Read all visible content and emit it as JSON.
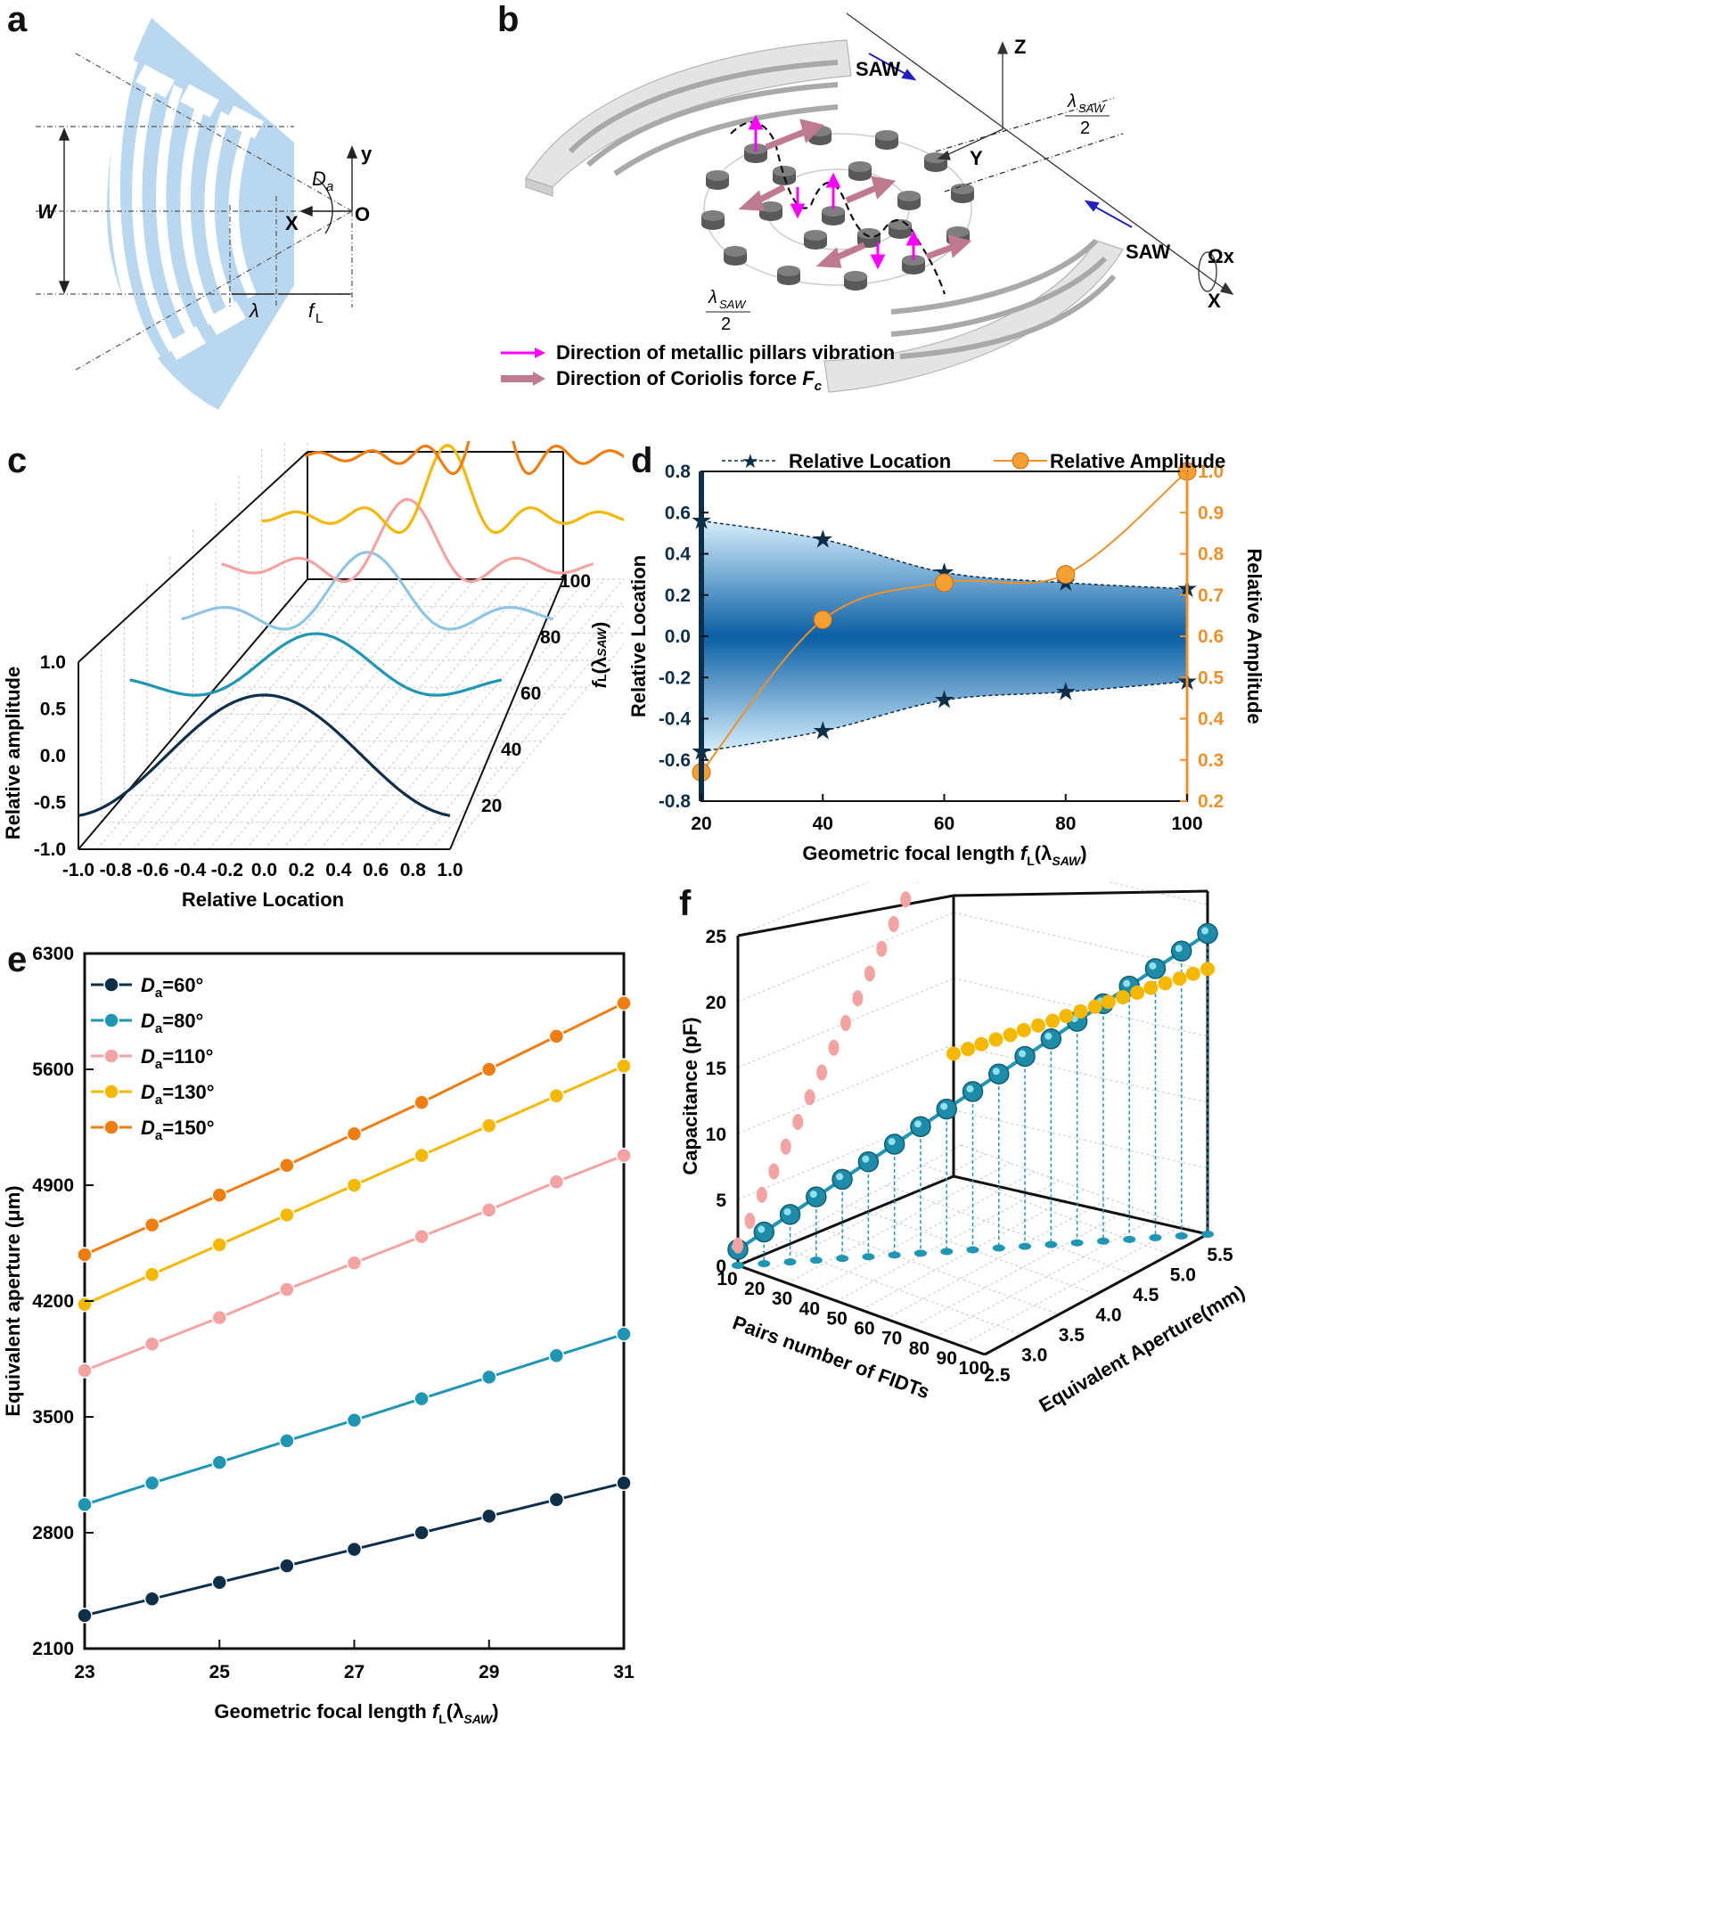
{
  "panel_labels": {
    "a": "a",
    "b": "b",
    "c": "c",
    "d": "d",
    "e": "e",
    "f": "f"
  },
  "panel_a": {
    "labels": {
      "W": "W",
      "y": "y",
      "X": "X",
      "O": "O",
      "Da": "D",
      "Da_sub": "a",
      "lambda": "λ",
      "fL": "f",
      "fL_sub": "L"
    },
    "colors": {
      "electrode": "#b9d8f0"
    }
  },
  "panel_b": {
    "labels": {
      "saw_top": "SAW",
      "saw_right": "SAW",
      "z": "Z",
      "y": "Y",
      "x": "X",
      "omega": "Ωx",
      "lambda_top": "λ",
      "lambda_sub": "SAW",
      "two": "2"
    },
    "legend": [
      {
        "text": "Direction of metallic pillars vibration",
        "color": "#ff00ff"
      },
      {
        "text": "Direction of Coriolis force ",
        "emph": "F",
        "emph_sub": "c",
        "color": "#c07a90"
      }
    ]
  },
  "panel_c": {
    "chart_data": {
      "type": "line",
      "xlabel": "Relative Location",
      "ylabel": "Relative amplitude",
      "zlabel": "f",
      "zlabel_sub": "L",
      "zlabel_unit": "(λ",
      "zlabel_unit_sub": "SAW",
      "zlabel_close": ")",
      "xticks": [
        "-1.0",
        "-0.8",
        "-0.6",
        "-0.4",
        "-0.2",
        "0.0",
        "0.2",
        "0.4",
        "0.6",
        "0.8",
        "1.0"
      ],
      "yticks": [
        "-1.0",
        "-0.5",
        "0.0",
        "0.5",
        "1.0"
      ],
      "zticks": [
        "20",
        "40",
        "60",
        "80",
        "100"
      ],
      "xlim": [
        -1.0,
        1.0
      ],
      "ylim": [
        -1.0,
        1.0
      ],
      "series": [
        {
          "fL": 20,
          "color": "#0d2f4a"
        },
        {
          "fL": 40,
          "color": "#1e96b4"
        },
        {
          "fL": 60,
          "color": "#8ec5e3"
        },
        {
          "fL": 80,
          "color": "#f4a3a3"
        },
        {
          "fL": 100,
          "color": "#f5b800"
        },
        {
          "fL": 100,
          "color": "#f07d10"
        }
      ]
    }
  },
  "panel_d": {
    "chart_data": {
      "type": "line",
      "xlabel": "Geometric focal length ",
      "xlabel_f": "f",
      "xlabel_sub": "L",
      "xlabel_unit": "(λ",
      "xlabel_unit_sub": "SAW",
      "xlabel_close": ")",
      "ylabel": "Relative Location",
      "y2label": "Relative Amplitude",
      "x": [
        20,
        40,
        60,
        80,
        100
      ],
      "xlim": [
        20,
        100
      ],
      "ylim": [
        -0.8,
        0.8
      ],
      "y2lim": [
        0.2,
        1.0
      ],
      "xticks": [
        "20",
        "40",
        "60",
        "80",
        "100"
      ],
      "yticks": [
        "-0.8",
        "-0.6",
        "-0.4",
        "-0.2",
        "0.0",
        "0.2",
        "0.4",
        "0.6",
        "0.8"
      ],
      "y2ticks": [
        "0.2",
        "0.3",
        "0.4",
        "0.5",
        "0.6",
        "0.7",
        "0.8",
        "0.9",
        "1.0"
      ],
      "series": [
        {
          "name": "Relative Location",
          "upper": [
            0.56,
            0.47,
            0.31,
            0.26,
            0.23
          ],
          "lower": [
            -0.56,
            -0.46,
            -0.31,
            -0.27,
            -0.22
          ],
          "color": "#0d2f4a"
        },
        {
          "name": "Relative Amplitude",
          "values": [
            0.27,
            0.64,
            0.73,
            0.75,
            1.0
          ],
          "color": "#f0902a"
        }
      ]
    }
  },
  "panel_e": {
    "chart_data": {
      "type": "line",
      "xlabel": "Geometric focal length ",
      "xlabel_f": "f",
      "xlabel_sub": "L",
      "xlabel_unit": "(λ",
      "xlabel_unit_sub": "SAW",
      "xlabel_close": ")",
      "ylabel": "Equivalent aperture (μm)",
      "x": [
        23,
        24,
        25,
        26,
        27,
        28,
        29,
        30,
        31
      ],
      "xlim": [
        23,
        31
      ],
      "ylim": [
        2100,
        6300
      ],
      "xticks": [
        "23",
        "25",
        "27",
        "29",
        "31"
      ],
      "yticks": [
        "2100",
        "2800",
        "3500",
        "4200",
        "4900",
        "5600",
        "6300"
      ],
      "series": [
        {
          "name": "D",
          "sub": "a",
          "suffix": "=60°",
          "values": [
            2300,
            2400,
            2500,
            2600,
            2700,
            2800,
            2900,
            3000,
            3100
          ],
          "color": "#0d2f4a"
        },
        {
          "name": "D",
          "sub": "a",
          "suffix": "=80°",
          "values": [
            2970,
            3100,
            3225,
            3355,
            3480,
            3610,
            3740,
            3870,
            4000
          ],
          "color": "#1e96b4"
        },
        {
          "name": "D",
          "sub": "a",
          "suffix": "=110°",
          "values": [
            3780,
            3940,
            4100,
            4270,
            4430,
            4590,
            4750,
            4920,
            5080
          ],
          "color": "#f4a3a3"
        },
        {
          "name": "D",
          "sub": "a",
          "suffix": "=130°",
          "values": [
            4180,
            4360,
            4540,
            4720,
            4900,
            5080,
            5260,
            5440,
            5620
          ],
          "color": "#f5b800"
        },
        {
          "name": "D",
          "sub": "a",
          "suffix": "=150°",
          "values": [
            4480,
            4660,
            4840,
            5020,
            5210,
            5400,
            5600,
            5800,
            6000
          ],
          "color": "#f07d10"
        }
      ]
    }
  },
  "panel_f": {
    "chart_data": {
      "type": "scatter",
      "xlabel": "Pairs number of FIDTs",
      "ylabel": "Equivalent Aperture(mm)",
      "zlabel": "Capacitance (pF)",
      "xticks": [
        "10",
        "20",
        "30",
        "40",
        "50",
        "60",
        "70",
        "80",
        "90",
        "100"
      ],
      "yticks": [
        "2.5",
        "3.0",
        "3.5",
        "4.0",
        "4.5",
        "5.0",
        "5.5"
      ],
      "zticks": [
        "0",
        "5",
        "10",
        "15",
        "20",
        "25"
      ],
      "series": [
        {
          "color": "#1e96b4",
          "pairs": [
            10,
            15,
            20,
            25,
            30,
            35,
            40,
            45,
            50,
            55,
            60,
            65,
            70,
            75,
            80,
            85,
            90,
            95,
            100
          ],
          "capacitance": [
            1.2,
            2.4,
            3.6,
            4.8,
            6.0,
            7.2,
            8.4,
            9.6,
            10.8,
            12.0,
            13.2,
            14.4,
            15.6,
            16.8,
            18.0,
            19.2,
            20.4,
            21.6,
            22.8
          ]
        },
        {
          "color": "#f4a3a3",
          "pairs": [
            10,
            15,
            20,
            25,
            30,
            35,
            40,
            45,
            50,
            55,
            60,
            65,
            70,
            75,
            80,
            85,
            90,
            95,
            100
          ],
          "capacitance": [
            1.5,
            3.0,
            4.6,
            6.0,
            7.5,
            9.0,
            10.5,
            12.0,
            13.5,
            15.0,
            16.5,
            18.0,
            19.5,
            21.0,
            22.5,
            24.0,
            25.5,
            27.0,
            28.5
          ]
        },
        {
          "color": "#f5b800",
          "aperture": [
            2.5,
            2.67,
            2.83,
            3.0,
            3.17,
            3.33,
            3.5,
            3.67,
            3.83,
            4.0,
            4.17,
            4.33,
            4.5,
            4.67,
            4.83,
            5.0,
            5.17,
            5.33,
            5.5
          ],
          "capacitance": [
            9.3,
            9.9,
            10.5,
            11.1,
            11.7,
            12.3,
            12.9,
            13.5,
            14.1,
            14.7,
            15.3,
            15.9,
            16.5,
            17.1,
            17.7,
            18.3,
            18.9,
            19.5,
            20.1
          ]
        }
      ]
    }
  }
}
